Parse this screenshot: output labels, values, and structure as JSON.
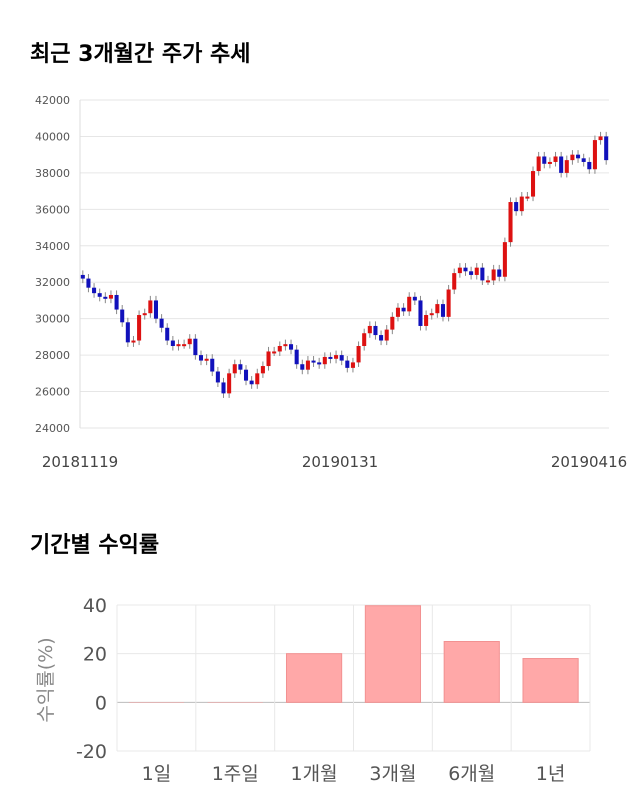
{
  "section1": {
    "title": "최근 3개월간 주가 추세"
  },
  "section2": {
    "title": "기간별 수익률"
  },
  "chart_data": [
    {
      "type": "candlestick",
      "title": "최근 3개월간 주가 추세",
      "ylim": [
        24000,
        42000
      ],
      "y_ticks": [
        "42000",
        "40000",
        "38000",
        "36000",
        "34000",
        "32000",
        "30000",
        "28000",
        "26000",
        "24000"
      ],
      "x_tick_labels": [
        "20181119",
        "20190131",
        "20190416"
      ],
      "colors": {
        "up": "#dd1111",
        "down": "#1111bb",
        "wick": "#888888",
        "grid": "#e6e6e6"
      },
      "closes": [
        32200,
        31700,
        31400,
        31200,
        31100,
        31300,
        30500,
        29800,
        28700,
        28800,
        30200,
        30300,
        31000,
        30000,
        29500,
        28800,
        28500,
        28600,
        28600,
        28900,
        28000,
        27700,
        27800,
        27100,
        26500,
        25900,
        27000,
        27500,
        27200,
        26600,
        26400,
        27000,
        27400,
        28200,
        28200,
        28500,
        28600,
        28300,
        27500,
        27200,
        27700,
        27600,
        27500,
        27900,
        27800,
        28000,
        27700,
        27300,
        27600,
        28500,
        29200,
        29600,
        29100,
        28800,
        29400,
        30100,
        30600,
        30400,
        31200,
        31000,
        29600,
        30200,
        30300,
        30800,
        30100,
        31600,
        32500,
        32800,
        32600,
        32400,
        32800,
        32100,
        32100,
        32700,
        32300,
        34200,
        36400,
        35900,
        36700,
        36700,
        38100,
        38900,
        38500,
        38600,
        38900,
        38000,
        38700,
        39000,
        38800,
        38600,
        38200,
        39800,
        40000,
        38700
      ]
    },
    {
      "type": "bar",
      "title": "기간별 수익률",
      "categories": [
        "1일",
        "1주일",
        "1개월",
        "3개월",
        "6개월",
        "1년"
      ],
      "values": [
        0,
        0,
        20,
        39.7,
        25,
        18
      ],
      "ylabel": "수익률(%)",
      "ylim": [
        -20,
        40
      ],
      "y_ticks": [
        "40",
        "20",
        "0",
        "-20"
      ],
      "colors": {
        "bar": "#ffa8a8",
        "bar_border": "#f29191",
        "grid": "#e8e8e8"
      }
    }
  ]
}
